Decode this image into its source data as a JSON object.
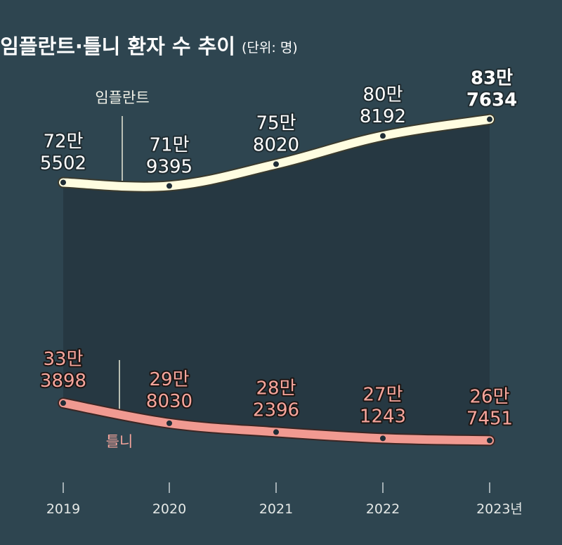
{
  "title": "임플란트·틀니 환자 수 추이",
  "unit_note": "(단위: 명)",
  "colors": {
    "background": "#2e4550",
    "implant_line": "#fffde0",
    "denture_line": "#f19a91",
    "denture_text": "#f6a59c",
    "band_fill": "#263842",
    "text_light": "#f2f2e8",
    "marker": "#1f2d36"
  },
  "chart_data": {
    "type": "line",
    "x": [
      "2019",
      "2020",
      "2021",
      "2022",
      "2023"
    ],
    "x_tick_labels": [
      "2019",
      "2020",
      "2021",
      "2022",
      "2023년"
    ],
    "ylim": [
      200000,
      900000
    ],
    "series": [
      {
        "name": "임플란트",
        "values": [
          725502,
          719395,
          758020,
          808192,
          837634
        ],
        "labels": [
          [
            "72만",
            "5502"
          ],
          [
            "71만",
            "9395"
          ],
          [
            "75만",
            "8020"
          ],
          [
            "80만",
            "8192"
          ],
          [
            "83만",
            "7634"
          ]
        ]
      },
      {
        "name": "틀니",
        "values": [
          333898,
          298030,
          282396,
          271243,
          267451
        ],
        "labels": [
          [
            "33만",
            "3898"
          ],
          [
            "29만",
            "8030"
          ],
          [
            "28만",
            "2396"
          ],
          [
            "27만",
            "1243"
          ],
          [
            "26만",
            "7451"
          ]
        ]
      }
    ]
  }
}
